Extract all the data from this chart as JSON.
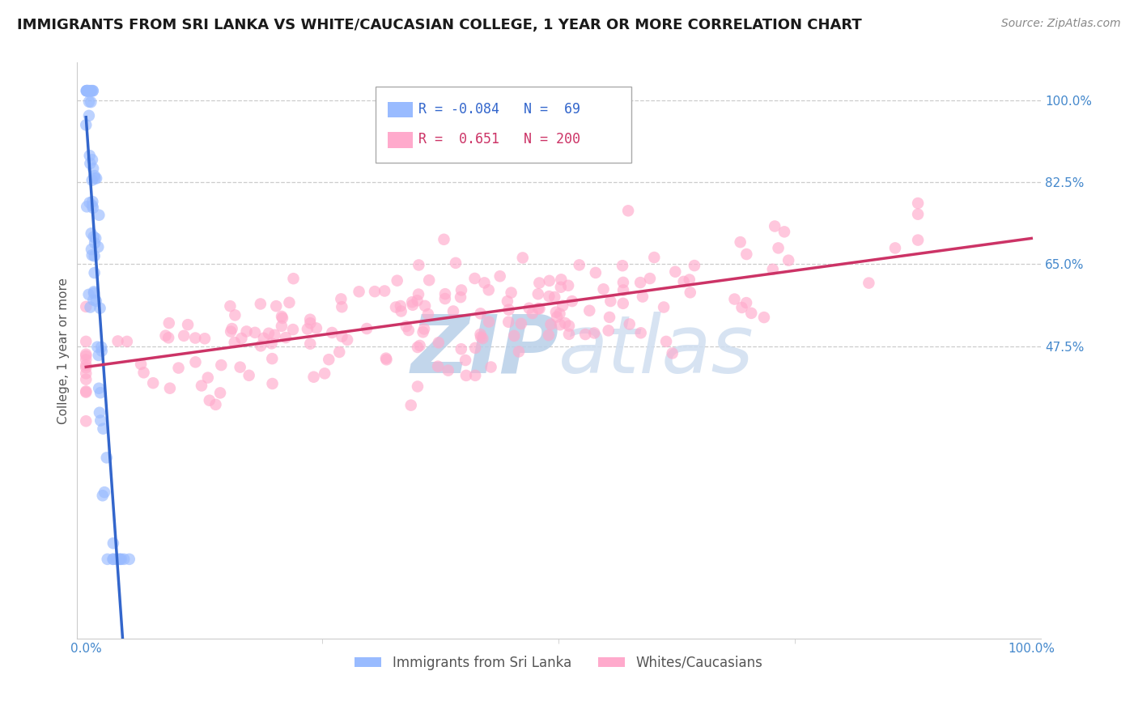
{
  "title": "IMMIGRANTS FROM SRI LANKA VS WHITE/CAUCASIAN COLLEGE, 1 YEAR OR MORE CORRELATION CHART",
  "source": "Source: ZipAtlas.com",
  "ylabel": "College, 1 year or more",
  "background_color": "#ffffff",
  "grid_color": "#cccccc",
  "blue_dot_color": "#99bbff",
  "pink_dot_color": "#ffaacc",
  "blue_line_color": "#3366cc",
  "pink_line_color": "#cc3366",
  "dashed_line_color": "#aaccee",
  "watermark_color": "#dce8f5",
  "legend_blue_r": "-0.084",
  "legend_blue_n": "69",
  "legend_pink_r": "0.651",
  "legend_pink_n": "200",
  "title_color": "#1a1a1a",
  "axis_label_color": "#4488cc",
  "ylabel_color": "#555555",
  "source_color": "#888888",
  "title_fontsize": 13,
  "tick_fontsize": 11,
  "legend_fontsize": 12,
  "y_ticks": [
    0.475,
    0.65,
    0.825,
    1.0
  ],
  "y_tick_labels": [
    "47.5%",
    "65.0%",
    "82.5%",
    "100.0%"
  ],
  "ylim_low": -0.15,
  "ylim_high": 1.08,
  "xlim_low": -0.01,
  "xlim_high": 1.01,
  "dot_size": 110,
  "dot_alpha": 0.65
}
